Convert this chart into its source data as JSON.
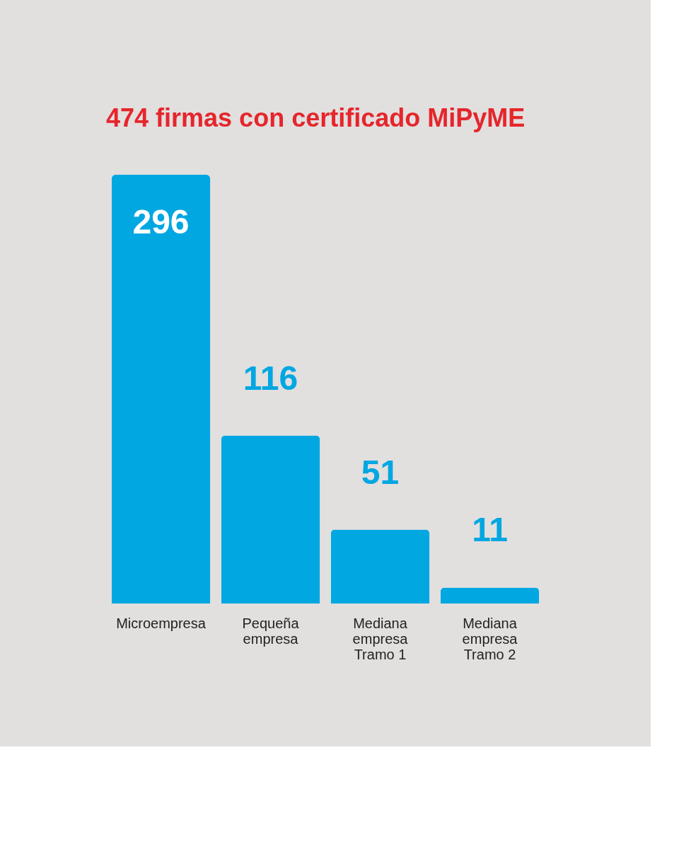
{
  "chart_data": {
    "type": "bar",
    "title": "474 firmas con certificado MiPyME",
    "categories": [
      "Microempresa",
      "Pequeña empresa",
      "Mediana empresa Tramo 1",
      "Mediana empresa Tramo 2"
    ],
    "values": [
      296,
      116,
      51,
      11
    ],
    "color": "#00a7e1",
    "data_labels": true
  }
}
